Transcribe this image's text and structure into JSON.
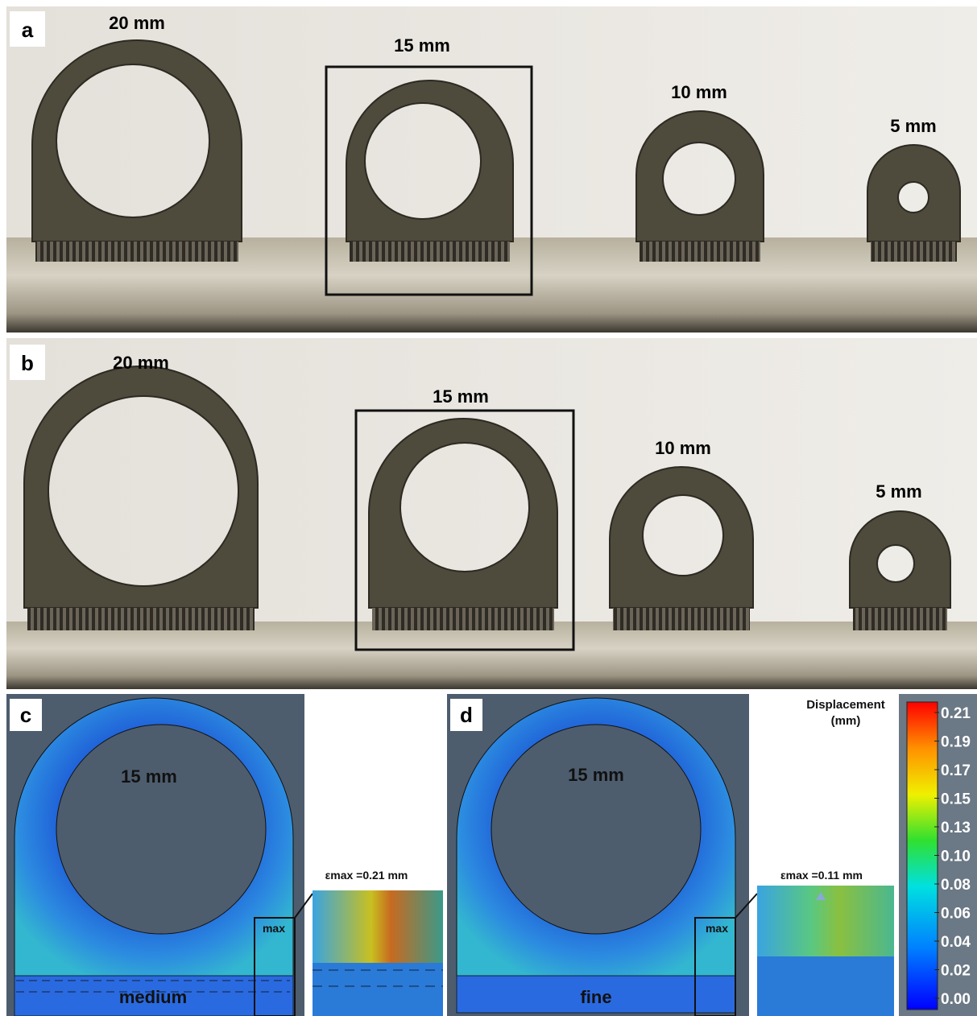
{
  "panel_a": {
    "label": "a",
    "parts": [
      "20 mm",
      "15 mm",
      "10 mm",
      "5 mm"
    ]
  },
  "panel_b": {
    "label": "b",
    "parts": [
      "20 mm",
      "15 mm",
      "10 mm",
      "5 mm"
    ]
  },
  "panel_c": {
    "label": "c",
    "part": "15 mm",
    "mesh": "medium",
    "max_marker": "max",
    "inset_caption": "εmax =0.21 mm"
  },
  "panel_d": {
    "label": "d",
    "part": "15 mm",
    "mesh": "fine",
    "max_marker": "max",
    "inset_caption": "εmax =0.11 mm"
  },
  "colorbar": {
    "title": "Displacement",
    "unit": "(mm)",
    "ticks": [
      "0.21",
      "0.19",
      "0.17",
      "0.15",
      "0.13",
      "0.10",
      "0.08",
      "0.06",
      "0.04",
      "0.02",
      "0.00"
    ]
  }
}
